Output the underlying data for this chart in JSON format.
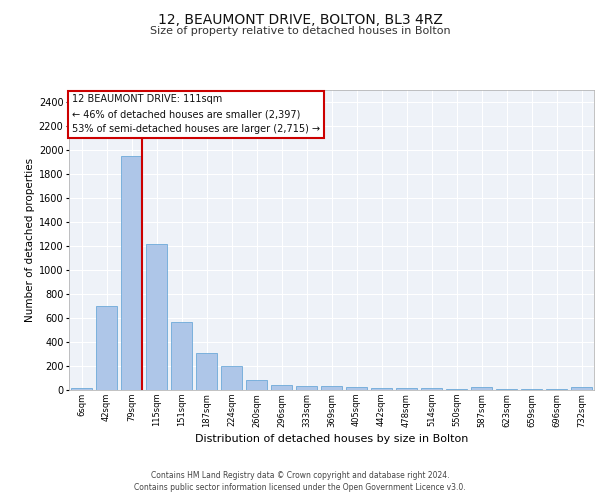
{
  "title": "12, BEAUMONT DRIVE, BOLTON, BL3 4RZ",
  "subtitle": "Size of property relative to detached houses in Bolton",
  "xlabel": "Distribution of detached houses by size in Bolton",
  "ylabel": "Number of detached properties",
  "categories": [
    "6sqm",
    "42sqm",
    "79sqm",
    "115sqm",
    "151sqm",
    "187sqm",
    "224sqm",
    "260sqm",
    "296sqm",
    "333sqm",
    "369sqm",
    "405sqm",
    "442sqm",
    "478sqm",
    "514sqm",
    "550sqm",
    "587sqm",
    "623sqm",
    "659sqm",
    "696sqm",
    "732sqm"
  ],
  "values": [
    15,
    700,
    1950,
    1220,
    570,
    305,
    200,
    80,
    45,
    35,
    30,
    28,
    20,
    18,
    15,
    5,
    22,
    5,
    5,
    5,
    22
  ],
  "bar_color": "#aec6e8",
  "bar_edgecolor": "#5a9fd4",
  "background_color": "#eef2f8",
  "grid_color": "#ffffff",
  "vline_color": "#cc0000",
  "vline_pos": 2.43,
  "annotation_text": "12 BEAUMONT DRIVE: 111sqm\n← 46% of detached houses are smaller (2,397)\n53% of semi-detached houses are larger (2,715) →",
  "annotation_box_color": "#cc0000",
  "ylim": [
    0,
    2500
  ],
  "yticks": [
    0,
    200,
    400,
    600,
    800,
    1000,
    1200,
    1400,
    1600,
    1800,
    2000,
    2200,
    2400
  ],
  "footer_line1": "Contains HM Land Registry data © Crown copyright and database right 2024.",
  "footer_line2": "Contains public sector information licensed under the Open Government Licence v3.0."
}
